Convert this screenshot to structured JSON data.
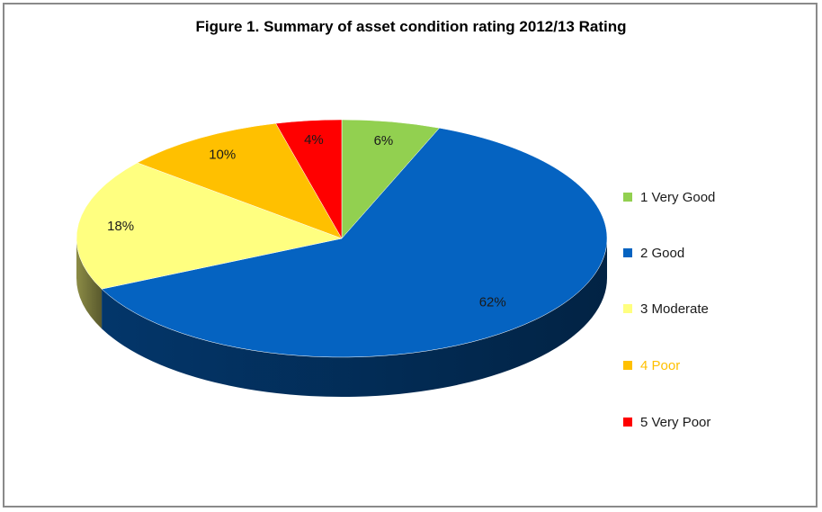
{
  "chart_data": {
    "type": "pie",
    "title": "Figure 1. Summary of asset condition  rating 2012/13 Rating",
    "categories": [
      "1 Very Good",
      "2 Good",
      "3 Moderate",
      "4 Poor",
      "5 Very Poor"
    ],
    "values": [
      6,
      62,
      18,
      10,
      4
    ],
    "data_labels": [
      "6%",
      "62%",
      "18%",
      "10%",
      "4%"
    ],
    "colors": [
      "#92d050",
      "#0563c1",
      "#ffff80",
      "#ffc000",
      "#ff0000"
    ],
    "legend_position": "right",
    "style": "3d"
  },
  "legend": [
    {
      "label": "1 Very Good",
      "color": "#92d050",
      "text_color": "#1a1a1a"
    },
    {
      "label": "2 Good",
      "color": "#0563c1",
      "text_color": "#1a1a1a"
    },
    {
      "label": "3 Moderate",
      "color": "#ffff80",
      "text_color": "#1a1a1a"
    },
    {
      "label": "4 Poor",
      "color": "#ffc000",
      "text_color": "#ffc000"
    },
    {
      "label": "5 Very Poor",
      "color": "#ff0000",
      "text_color": "#1a1a1a"
    }
  ]
}
